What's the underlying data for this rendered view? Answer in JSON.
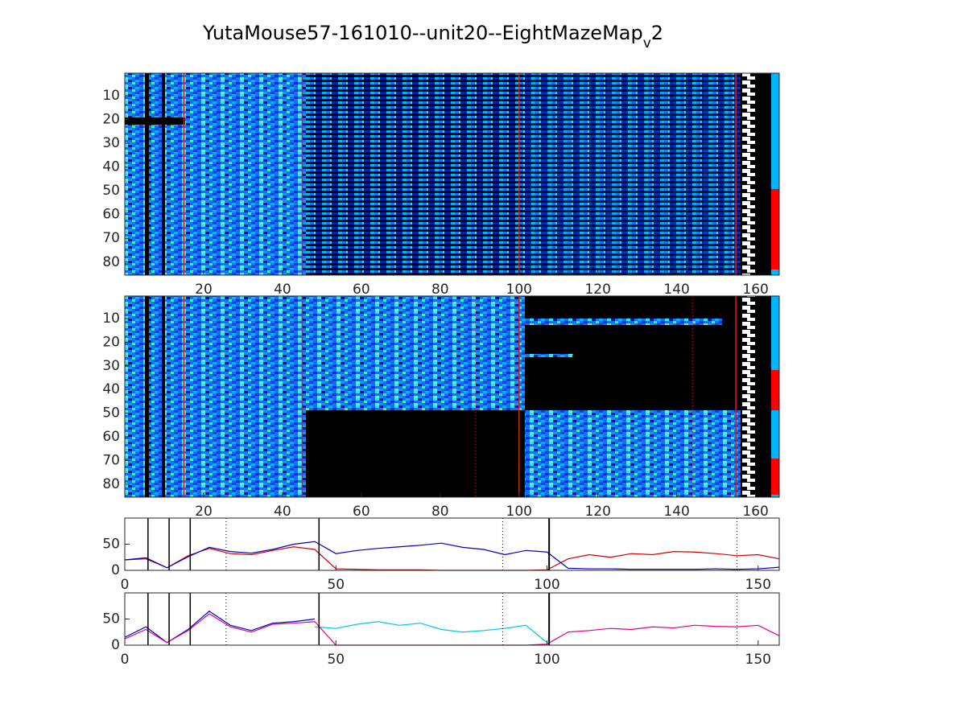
{
  "chart_data": [
    {
      "type": "heatmap",
      "title": [
        "YutaMouse57-161010--unit20--EightMazeMap",
        "v",
        "2"
      ],
      "xlim": [
        0,
        166
      ],
      "ylim": [
        0.5,
        85.5
      ],
      "y_direction": "reverse",
      "xticks": [
        20,
        40,
        60,
        80,
        100,
        120,
        140,
        160
      ],
      "yticks": [
        10,
        20,
        30,
        40,
        50,
        60,
        70,
        80
      ],
      "vlines": [
        15,
        45,
        100,
        155
      ],
      "dotted_vlines": [
        90
      ],
      "line_color": "#d02020"
    },
    {
      "type": "heatmap",
      "xlim": [
        0,
        166
      ],
      "ylim": [
        0.5,
        85.5
      ],
      "y_direction": "reverse",
      "xticks": [
        20,
        40,
        60,
        80,
        100,
        120,
        140,
        160
      ],
      "yticks": [
        10,
        20,
        30,
        40,
        50,
        60,
        70,
        80
      ],
      "vlines": [
        15,
        45,
        100,
        155
      ],
      "dotted_vlines": [
        89,
        144
      ],
      "line_color": "#d02020"
    },
    {
      "type": "line",
      "xlim": [
        0,
        155
      ],
      "ylim": [
        0,
        100
      ],
      "xticks": [
        0,
        50,
        100,
        150
      ],
      "yticks": [
        0,
        50
      ],
      "vlines": [
        5.5,
        10.5,
        15.5,
        46,
        100.5
      ],
      "dotted_vlines": [
        24,
        89.5,
        145
      ],
      "line_color": "#000000",
      "x": [
        0,
        5,
        10,
        15,
        20,
        25,
        30,
        35,
        40,
        45,
        50,
        55,
        60,
        65,
        70,
        75,
        80,
        85,
        90,
        95,
        100,
        105,
        110,
        115,
        120,
        125,
        130,
        135,
        140,
        145,
        150,
        155
      ],
      "series": [
        {
          "color": "#d00000",
          "values": [
            20,
            22,
            5,
            28,
            42,
            32,
            30,
            38,
            45,
            40,
            3,
            2,
            1,
            1,
            1,
            0,
            0,
            0,
            0,
            0,
            1,
            22,
            30,
            25,
            32,
            30,
            36,
            35,
            32,
            28,
            30,
            22
          ]
        },
        {
          "color": "#0000c0",
          "values": [
            20,
            24,
            5,
            26,
            44,
            36,
            33,
            40,
            50,
            55,
            32,
            38,
            42,
            45,
            48,
            52,
            44,
            40,
            30,
            38,
            35,
            4,
            3,
            3,
            2,
            2,
            2,
            2,
            3,
            2,
            3,
            6
          ]
        }
      ]
    },
    {
      "type": "line",
      "xlim": [
        0,
        155
      ],
      "ylim": [
        0,
        100
      ],
      "xticks": [
        0,
        50,
        100,
        150
      ],
      "yticks": [
        0,
        50
      ],
      "vlines": [
        5.5,
        10.5,
        15.5,
        46,
        100.5
      ],
      "dotted_vlines": [
        24,
        89.5,
        145
      ],
      "line_color": "#000000",
      "x": [
        0,
        5,
        10,
        15,
        20,
        25,
        30,
        35,
        40,
        45,
        50,
        55,
        60,
        65,
        70,
        75,
        80,
        85,
        90,
        95,
        100,
        105,
        110,
        115,
        120,
        125,
        130,
        135,
        140,
        145,
        150,
        155
      ],
      "series": [
        {
          "color": "#0000c0",
          "values": [
            15,
            35,
            5,
            30,
            65,
            38,
            28,
            42,
            45,
            50,
            null,
            null,
            null,
            null,
            null,
            null,
            null,
            null,
            null,
            null,
            null,
            null,
            null,
            null,
            null,
            null,
            null,
            null,
            null,
            null,
            null,
            null
          ]
        },
        {
          "color": "#00c8e0",
          "values": [
            null,
            null,
            null,
            null,
            null,
            null,
            null,
            null,
            null,
            35,
            32,
            40,
            45,
            38,
            42,
            30,
            25,
            28,
            32,
            38,
            5,
            null,
            null,
            null,
            null,
            null,
            null,
            null,
            null,
            null,
            null,
            null
          ]
        },
        {
          "color": "#e0008c",
          "values": [
            12,
            30,
            5,
            28,
            60,
            35,
            25,
            40,
            42,
            45,
            0,
            0,
            0,
            0,
            0,
            0,
            0,
            0,
            0,
            0,
            2,
            25,
            28,
            32,
            30,
            35,
            33,
            38,
            36,
            35,
            38,
            18
          ]
        }
      ]
    }
  ]
}
